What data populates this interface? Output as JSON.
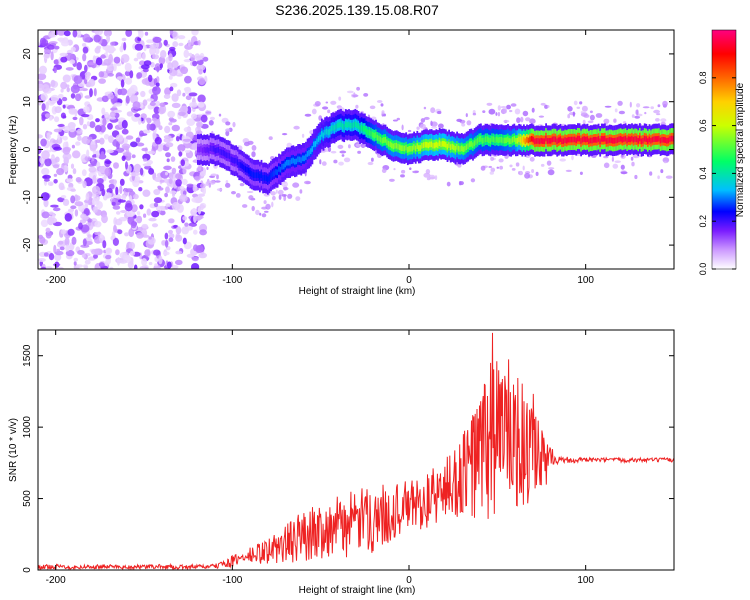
{
  "title": "S236.2025.139.15.08.R07",
  "chart_data": [
    {
      "type": "heatmap",
      "title": "",
      "xlabel": "Height of straight line (km)",
      "ylabel": "Frequency (Hz)",
      "xlim": [
        -210,
        150
      ],
      "ylim": [
        -25,
        25
      ],
      "xticks": [
        "-200",
        "-100",
        "0",
        "100"
      ],
      "xtick_values": [
        -200,
        -100,
        0,
        100
      ],
      "yticks": [
        "20",
        "10",
        "0",
        "-10",
        "-20"
      ],
      "ytick_values": [
        20,
        10,
        0,
        -10,
        -20
      ],
      "colorbar": {
        "label": "Normalized spectral amplitude",
        "range": [
          0,
          1
        ],
        "ticks": [
          "0.0",
          "0.2",
          "0.4",
          "0.6",
          "0.8"
        ],
        "tick_values": [
          0,
          0.2,
          0.4,
          0.6,
          0.8
        ],
        "colors": [
          "#ffffff",
          "#cc99ff",
          "#6a0dff",
          "#0000ff",
          "#00bfff",
          "#00ff66",
          "#ccff00",
          "#ffd000",
          "#ff6600",
          "#ff0000",
          "#ff0080"
        ]
      },
      "ridge": {
        "x": [
          -120,
          -110,
          -100,
          -90,
          -80,
          -70,
          -60,
          -50,
          -40,
          -30,
          -20,
          -10,
          0,
          10,
          20,
          30,
          40,
          50,
          60,
          70,
          80,
          100,
          120,
          150
        ],
        "y": [
          0,
          0,
          -2,
          -5,
          -6,
          -3,
          -2,
          3,
          5,
          5,
          3,
          1,
          0,
          1,
          1,
          0,
          2,
          2,
          2,
          2,
          2,
          2,
          2,
          2
        ],
        "amplitude": [
          0.15,
          0.2,
          0.2,
          0.25,
          0.25,
          0.3,
          0.3,
          0.35,
          0.4,
          0.4,
          0.5,
          0.55,
          0.55,
          0.6,
          0.6,
          0.55,
          0.5,
          0.5,
          0.55,
          0.95,
          0.95,
          0.95,
          0.95,
          0.95
        ]
      },
      "noise_region_x": [
        -210,
        -115
      ]
    },
    {
      "type": "line",
      "title": "",
      "xlabel": "Height of straight line (km)",
      "ylabel": "SNR (10 * v/v)",
      "xlim": [
        -210,
        150
      ],
      "ylim": [
        0,
        1680
      ],
      "xticks": [
        "-200",
        "-100",
        "0",
        "100"
      ],
      "xtick_values": [
        -200,
        -100,
        0,
        100
      ],
      "yticks": [
        "0",
        "500",
        "1000",
        "1500"
      ],
      "ytick_values": [
        0,
        500,
        1000,
        1500
      ],
      "color": "#ee2222",
      "series": [
        {
          "x": [
            -210,
            -200,
            -190,
            -180,
            -170,
            -160,
            -150,
            -140,
            -130,
            -120,
            -110,
            -100,
            -90,
            -80,
            -70,
            -60,
            -50,
            -40,
            -30,
            -20,
            -10,
            0,
            10,
            20,
            30,
            40,
            45,
            50,
            55,
            60,
            65,
            70,
            75,
            80,
            85,
            90,
            100,
            110,
            120,
            130,
            140,
            150
          ],
          "values": [
            20,
            25,
            20,
            22,
            25,
            20,
            22,
            25,
            20,
            22,
            25,
            60,
            100,
            130,
            180,
            240,
            280,
            300,
            330,
            360,
            400,
            450,
            480,
            560,
            650,
            800,
            900,
            1000,
            960,
            900,
            850,
            800,
            700,
            800,
            780,
            770,
            770,
            770,
            770,
            770,
            770,
            770
          ],
          "amplitude": [
            15,
            15,
            15,
            15,
            15,
            15,
            15,
            15,
            15,
            15,
            15,
            40,
            60,
            90,
            140,
            180,
            200,
            220,
            230,
            240,
            200,
            180,
            200,
            220,
            300,
            500,
            600,
            650,
            550,
            500,
            450,
            450,
            300,
            60,
            40,
            25,
            15,
            15,
            15,
            15,
            15,
            15
          ],
          "max": [
            1660
          ]
        }
      ]
    }
  ]
}
